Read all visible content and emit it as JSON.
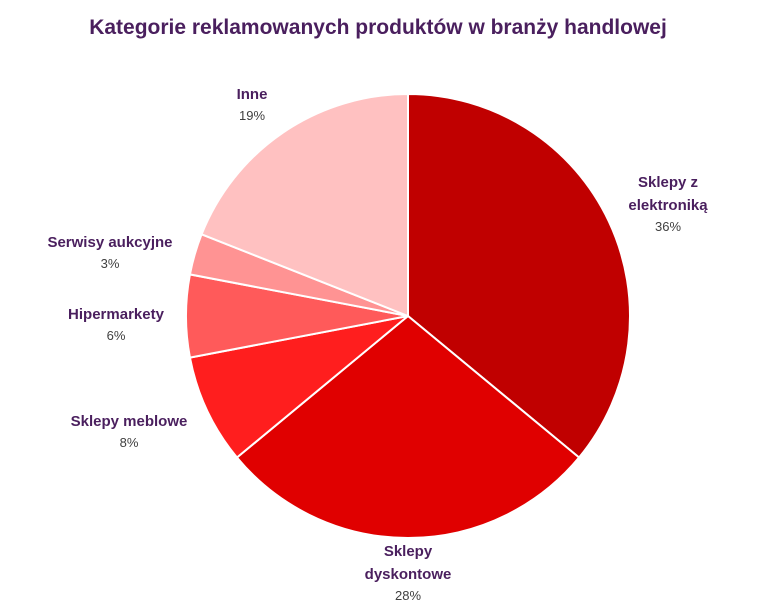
{
  "chart_data": {
    "type": "pie",
    "title": "Kategorie reklamowanych produktów w branży handlowej",
    "start": "12 o'clock",
    "direction": "clockwise",
    "slices": [
      {
        "label": "Sklepy z elektroniką",
        "label_lines": [
          "Sklepy z",
          "elektroniką"
        ],
        "value": 36,
        "pct_label": "36%",
        "color": "#c00000"
      },
      {
        "label": "Sklepy dyskontowe",
        "label_lines": [
          "Sklepy",
          "dyskontowe"
        ],
        "value": 28,
        "pct_label": "28%",
        "color": "#e00000"
      },
      {
        "label": "Sklepy meblowe",
        "label_lines": [
          "Sklepy meblowe"
        ],
        "value": 8,
        "pct_label": "8%",
        "color": "#ff1e1e"
      },
      {
        "label": "Hipermarkety",
        "label_lines": [
          "Hipermarkety"
        ],
        "value": 6,
        "pct_label": "6%",
        "color": "#ff5a5a"
      },
      {
        "label": "Serwisy aukcyjne",
        "label_lines": [
          "Serwisy aukcyjne"
        ],
        "value": 3,
        "pct_label": "3%",
        "color": "#ff9393"
      },
      {
        "label": "Inne",
        "label_lines": [
          "Inne"
        ],
        "value": 19,
        "pct_label": "19%",
        "color": "#ffc1c1"
      }
    ]
  }
}
